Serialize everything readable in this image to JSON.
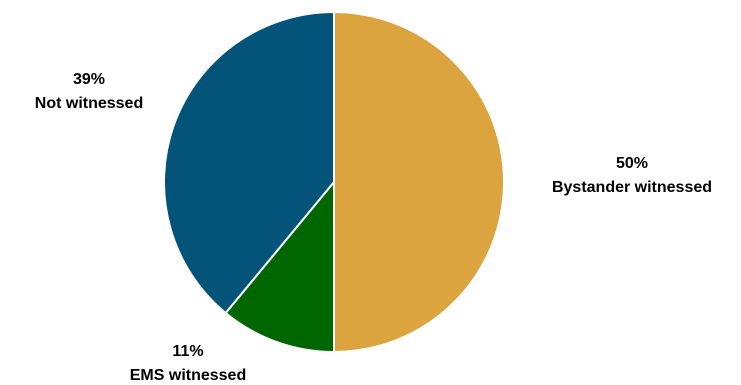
{
  "chart_data": {
    "type": "pie",
    "title": "",
    "start_angle_deg": 0,
    "direction": "clockwise",
    "slices": [
      {
        "category": "Bystander witnessed",
        "value": 50,
        "value_label": "50%",
        "color": "#DBA43F"
      },
      {
        "category": "EMS witnessed",
        "value": 11,
        "value_label": "11%",
        "color": "#006600"
      },
      {
        "category": "Not witnessed",
        "value": 39,
        "value_label": "39%",
        "color": "#035478"
      }
    ],
    "slice_border_color": "#ffffff",
    "legend": "none"
  }
}
